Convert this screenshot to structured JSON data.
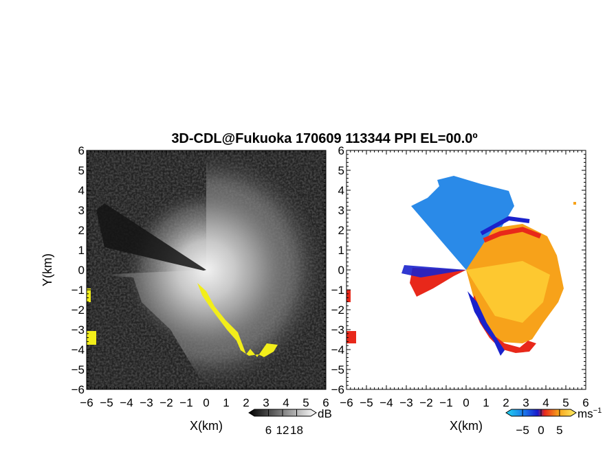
{
  "title": "3D-CDL@Fukuoka 170609 113344 PPI EL=00.0º",
  "chart_data": [
    {
      "type": "heatmap",
      "name": "",
      "xlabel": "X(km)",
      "ylabel": "Y(km)",
      "xlim": [
        -6,
        6
      ],
      "ylim": [
        -6,
        6
      ],
      "xticks": [
        "−6",
        "−5",
        "−4",
        "−3",
        "−2",
        "−1",
        "0",
        "1",
        "2",
        "3",
        "4",
        "5",
        "6"
      ],
      "yticks": [
        "−6",
        "−5",
        "−4",
        "−3",
        "−2",
        "−1",
        "0",
        "1",
        "2",
        "3",
        "4",
        "5",
        "6"
      ],
      "colorbar": {
        "ticks": [
          "6",
          "12",
          "18"
        ],
        "tick_values": [
          6,
          12,
          18
        ],
        "range": [
          0,
          24
        ],
        "unit": "dB"
      },
      "colors": {
        "background": "#222222",
        "signal": "#ffffff",
        "clutter": "#f2ee1a"
      }
    },
    {
      "type": "heatmap",
      "name": "",
      "xlabel": "X(km)",
      "ylabel": "",
      "xlim": [
        -6,
        6
      ],
      "ylim": [
        -6,
        6
      ],
      "xticks": [
        "−6",
        "−5",
        "−4",
        "−3",
        "−2",
        "−1",
        "0",
        "1",
        "2",
        "3",
        "4",
        "5",
        "6"
      ],
      "yticks": [
        "−6",
        "−5",
        "−4",
        "−3",
        "−2",
        "−1",
        "0",
        "1",
        "2",
        "3",
        "4",
        "5",
        "6"
      ],
      "colorbar": {
        "ticks": [
          "−5",
          "0",
          "5"
        ],
        "tick_values": [
          -5,
          0,
          5
        ],
        "range": [
          -8,
          8
        ],
        "unit": "ms",
        "unit_exponent": "−1"
      },
      "colors": {
        "approach": "#2a8ae8",
        "recede": "#f7a21a",
        "strong_neg": "#1a22cc",
        "strong_pos": "#e8281a"
      }
    }
  ]
}
